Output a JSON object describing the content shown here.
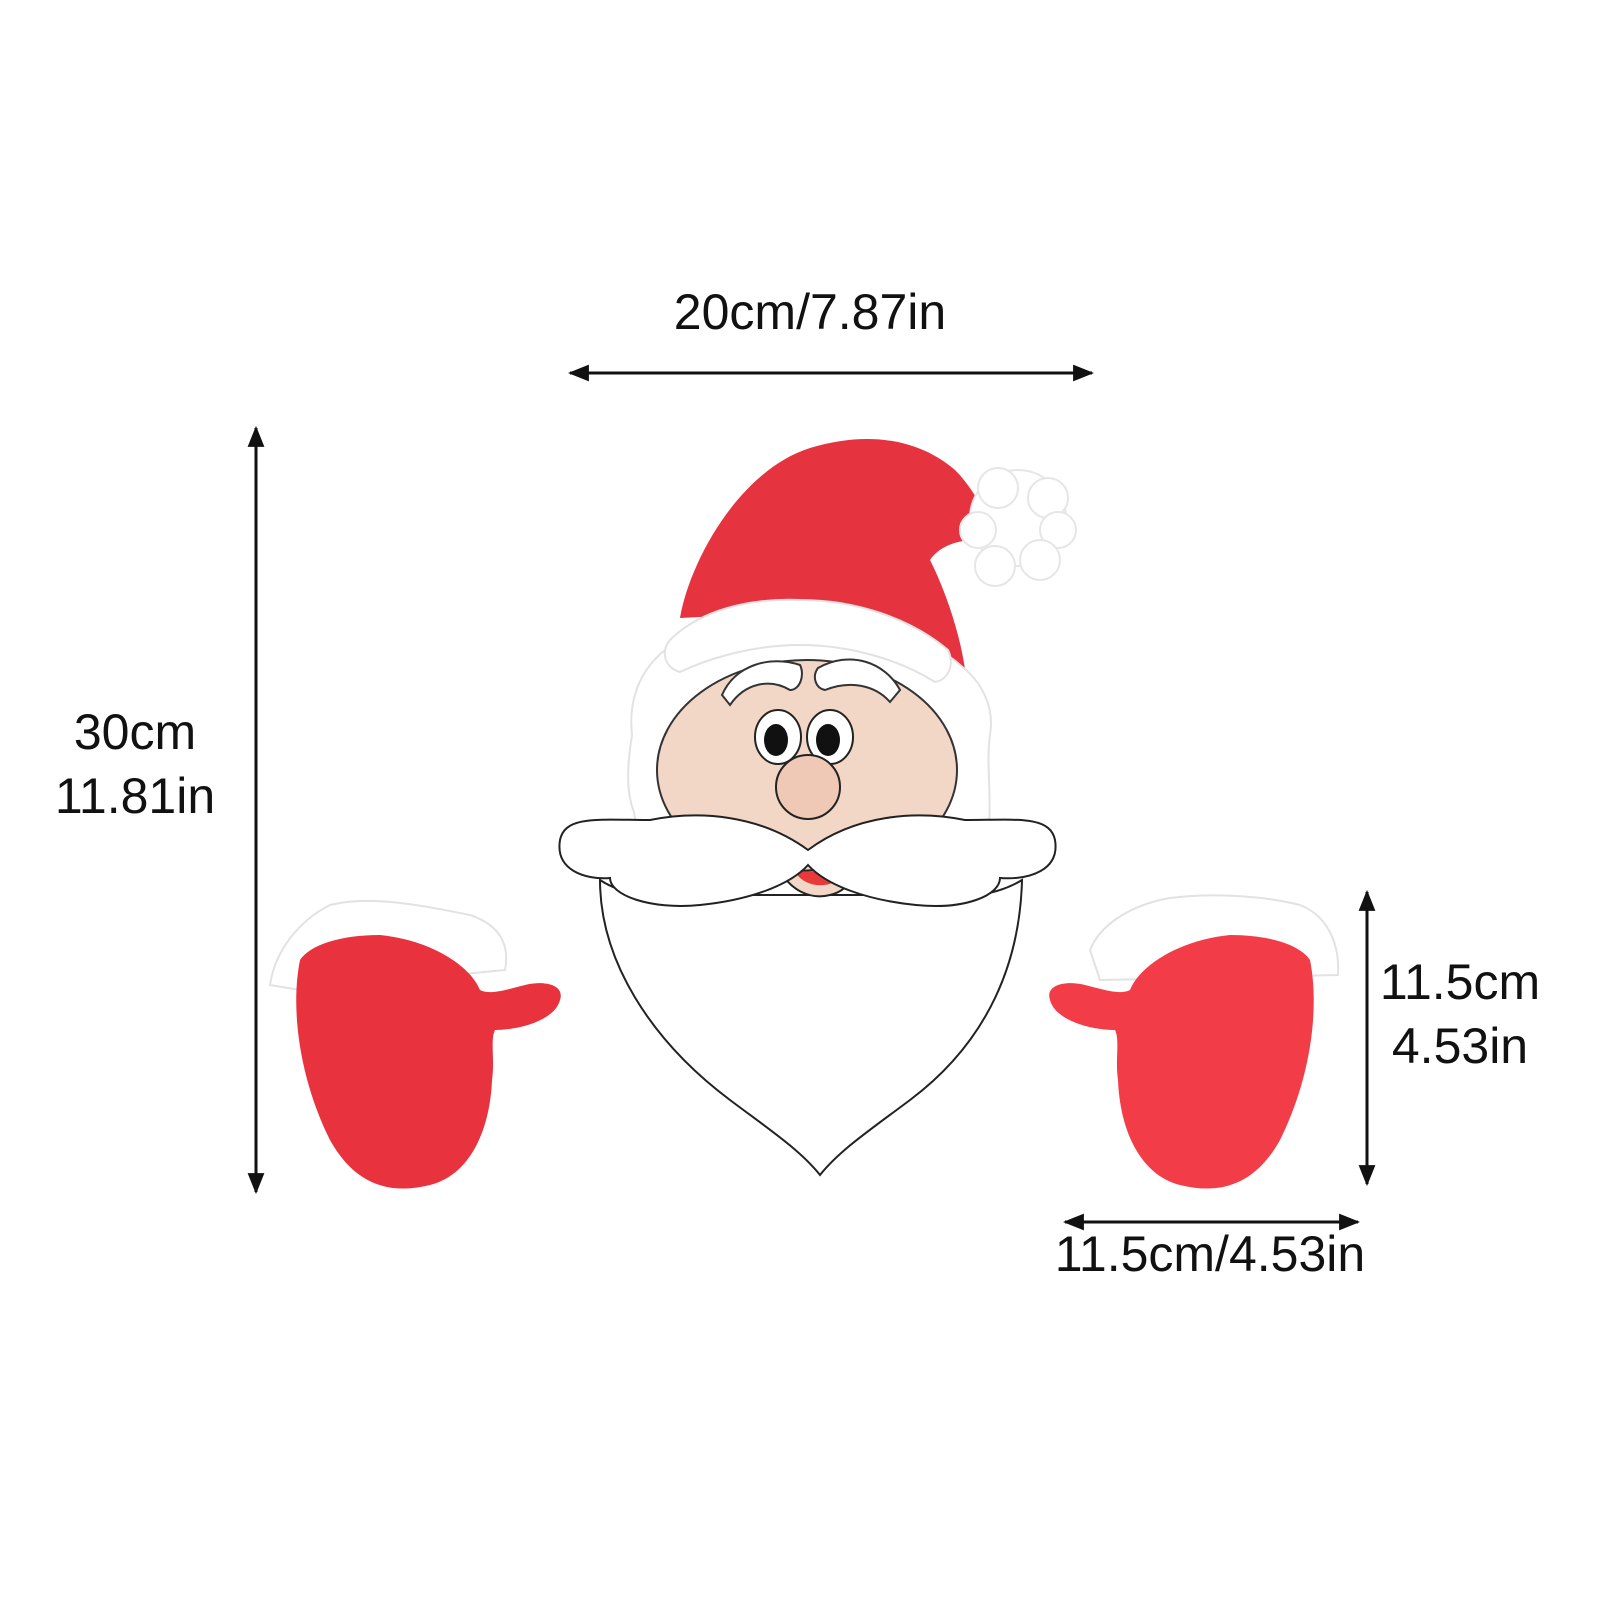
{
  "dimensions": {
    "face_width": "20cm/7.87in",
    "total_height_cm": "30cm",
    "total_height_in": "11.81in",
    "mitten_height_cm": "11.5cm",
    "mitten_height_in": "4.53in",
    "mitten_width": "11.5cm/4.53in"
  },
  "colors": {
    "hat_red": "#e5333f",
    "mitten_red": "#e8323e",
    "fur_white": "#ffffff",
    "skin": "#f2d6c6",
    "mouth": "#e83a3a",
    "outline": "#222222"
  },
  "icons": {
    "santa": "santa-face-illustration",
    "mittens": "red-mitten-illustration"
  }
}
